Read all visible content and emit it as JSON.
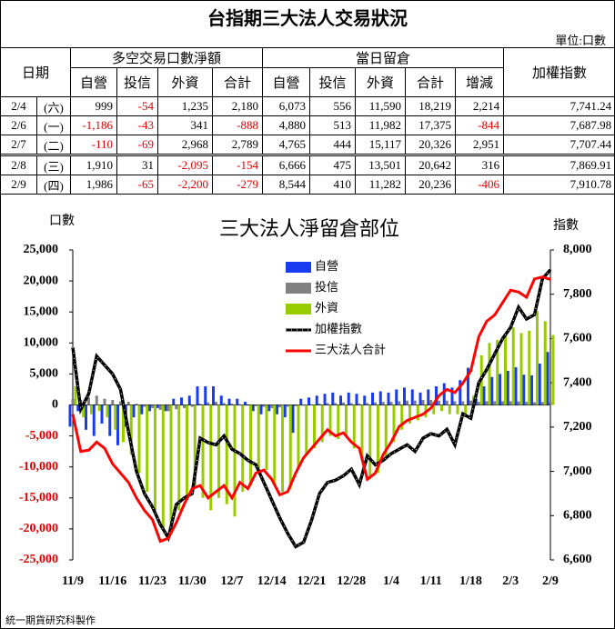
{
  "header": {
    "title": "台指期三大法人交易狀況",
    "unit": "單位:口數"
  },
  "table": {
    "group_headers": [
      "日期",
      "多空交易口數淨額",
      "當日留倉",
      "加權指數"
    ],
    "columns": [
      "自營",
      "投信",
      "外資",
      "合計",
      "自營",
      "投信",
      "外資",
      "合計",
      "增減"
    ],
    "rows": [
      [
        "2/4",
        "(六)",
        "999",
        "-54",
        "1,235",
        "2,180",
        "6,073",
        "556",
        "11,590",
        "18,219",
        "2,214",
        "7,741.24"
      ],
      [
        "2/6",
        "(一)",
        "-1,186",
        "-43",
        "341",
        "-888",
        "4,880",
        "513",
        "11,982",
        "17,375",
        "-844",
        "7,687.98"
      ],
      [
        "2/7",
        "(二)",
        "-110",
        "-69",
        "2,968",
        "2,789",
        "4,765",
        "444",
        "15,117",
        "20,326",
        "2,951",
        "7,707.44"
      ],
      [
        "2/8",
        "(三)",
        "1,910",
        "31",
        "-2,095",
        "-154",
        "6,666",
        "475",
        "13,501",
        "20,642",
        "316",
        "7,869.91"
      ],
      [
        "2/9",
        "(四)",
        "1,986",
        "-65",
        "-2,200",
        "-279",
        "8,544",
        "410",
        "11,282",
        "20,236",
        "-406",
        "7,910.78"
      ]
    ]
  },
  "chart_data": {
    "type": "combo",
    "title": "三大法人淨留倉部位",
    "y_label": "口數",
    "y2_label": "指數",
    "categories": [
      "11/9",
      null,
      null,
      null,
      null,
      "11/16",
      null,
      null,
      null,
      null,
      "11/23",
      null,
      null,
      null,
      null,
      "11/30",
      null,
      null,
      null,
      null,
      "12/7",
      null,
      null,
      null,
      null,
      "12/14",
      null,
      null,
      null,
      null,
      "12/21",
      null,
      null,
      null,
      null,
      "12/28",
      null,
      null,
      null,
      null,
      "1/4",
      null,
      null,
      null,
      null,
      "1/11",
      null,
      null,
      null,
      null,
      "1/18",
      null,
      null,
      null,
      null,
      "2/3",
      null,
      null,
      null,
      null,
      "2/9"
    ],
    "ylim": [
      -25000,
      25000
    ],
    "yticks": [
      {
        "value": 25000,
        "label": "25,000"
      },
      {
        "value": 20000,
        "label": "20,000"
      },
      {
        "value": 15000,
        "label": "15,000"
      },
      {
        "value": 10000,
        "label": "10,000"
      },
      {
        "value": 5000,
        "label": "5,000"
      },
      0,
      {
        "value": -5000,
        "label": "-5,000"
      },
      {
        "value": -10000,
        "label": "-10,000"
      },
      {
        "value": -15000,
        "label": "-15,000"
      },
      {
        "value": -20000,
        "label": "-20,000"
      },
      {
        "value": -25000,
        "label": "-25,000"
      }
    ],
    "y2lim": [
      6600,
      8000
    ],
    "y2ticks": [
      {
        "value": 8000,
        "label": "8,000"
      },
      {
        "value": 7800,
        "label": "7,800"
      },
      {
        "value": 7600,
        "label": "7,600"
      },
      {
        "value": 7400,
        "label": "7,400"
      },
      {
        "value": 7200,
        "label": "7,200"
      },
      {
        "value": 7000,
        "label": "7,000"
      },
      {
        "value": 6800,
        "label": "6,800"
      },
      {
        "value": 6600,
        "label": "6,600"
      }
    ],
    "series": [
      {
        "name": "自營",
        "type": "bar",
        "color": "#1a3cf0",
        "values": [
          -3500,
          -1000,
          -4000,
          -5000,
          -3000,
          -5000,
          -6500,
          -3500,
          -2000,
          -1500,
          -1000,
          -500,
          -1000,
          1000,
          1200,
          1500,
          3000,
          3000,
          3000,
          1500,
          1000,
          1000,
          500,
          -1000,
          -1500,
          -1000,
          -1500,
          -2000,
          -4500,
          1000,
          1200,
          1500,
          1800,
          2000,
          1500,
          2000,
          1800,
          1500,
          2000,
          2200,
          2000,
          2500,
          2800,
          2500,
          2000,
          2500,
          3000,
          3500,
          2800,
          4000,
          6000,
          1000,
          3000,
          4500,
          5000,
          5500,
          6073,
          4880,
          4765,
          6666,
          8544
        ]
      },
      {
        "name": "投信",
        "type": "bar",
        "color": "#808080",
        "values": [
          1000,
          800,
          1200,
          1500,
          1000,
          800,
          600,
          500,
          200,
          -300,
          -500,
          -800,
          -1000,
          -700,
          -500,
          -300,
          200,
          400,
          500,
          300,
          200,
          100,
          0,
          -200,
          -300,
          -500,
          -400,
          -300,
          -200,
          -100,
          100,
          200,
          300,
          300,
          400,
          300,
          200,
          300,
          400,
          500,
          500,
          600,
          700,
          700,
          800,
          800,
          700,
          700,
          600,
          600,
          700,
          500,
          600,
          600,
          600,
          600,
          556,
          513,
          444,
          475,
          410
        ]
      },
      {
        "name": "外資",
        "type": "bar",
        "color": "#99cc00",
        "values": [
          3000,
          -2000,
          -1500,
          -1000,
          -2000,
          -4000,
          -6000,
          -8000,
          -11000,
          -14000,
          -17000,
          -20000,
          -19000,
          -17000,
          -15000,
          -13000,
          -15000,
          -17000,
          -15000,
          -16000,
          -18000,
          -14000,
          -13000,
          -11000,
          -10500,
          -13000,
          -14000,
          -13500,
          -10000,
          -8000,
          -7000,
          -6000,
          -5000,
          -5500,
          -5000,
          -7000,
          -9000,
          -12000,
          -11000,
          -8500,
          -6000,
          -4000,
          -3000,
          -2500,
          -2000,
          -1500,
          -1000,
          -1500,
          -1500,
          -2000,
          1500,
          8000,
          10000,
          10500,
          11500,
          12500,
          11590,
          11982,
          15117,
          13501,
          11282
        ]
      },
      {
        "name": "加權指數",
        "type": "line",
        "axis": "y2",
        "linestyle": "dashdot",
        "color": "#000000",
        "values": [
          7560,
          7280,
          7350,
          7520,
          7480,
          7440,
          7370,
          7180,
          7000,
          6900,
          6840,
          6760,
          6700,
          6850,
          6880,
          6900,
          7150,
          7130,
          7120,
          7160,
          7100,
          7080,
          7050,
          7030,
          6950,
          6870,
          6790,
          6720,
          6660,
          6680,
          6780,
          6900,
          6950,
          6960,
          6980,
          7010,
          6940,
          7070,
          7030,
          7050,
          7080,
          7100,
          7120,
          7090,
          7150,
          7170,
          7160,
          7190,
          7120,
          7260,
          7240,
          7400,
          7460,
          7530,
          7600,
          7650,
          7741.24,
          7687.98,
          7707.44,
          7869.91,
          7910.78
        ]
      },
      {
        "name": "三大法人合計",
        "type": "line",
        "linestyle": "solid",
        "color": "#ff0000",
        "values": [
          -1500,
          -7500,
          -7300,
          -6000,
          -7000,
          -9500,
          -11000,
          -12500,
          -15000,
          -17000,
          -18500,
          -22000,
          -21500,
          -19000,
          -16000,
          -13500,
          -13000,
          -15000,
          -14000,
          -13000,
          -15000,
          -12500,
          -13500,
          -11000,
          -10500,
          -12000,
          -14500,
          -14000,
          -11000,
          -8500,
          -7000,
          -5500,
          -4000,
          -5000,
          -4500,
          -6000,
          -7000,
          -12000,
          -11000,
          -8000,
          -6000,
          -3500,
          -2500,
          -2000,
          -1500,
          -500,
          1500,
          2500,
          2000,
          3500,
          5500,
          11000,
          13500,
          14500,
          16500,
          18500,
          18219,
          17375,
          20326,
          20642,
          20236
        ]
      }
    ]
  },
  "footer": "統一期貨研究科製作"
}
